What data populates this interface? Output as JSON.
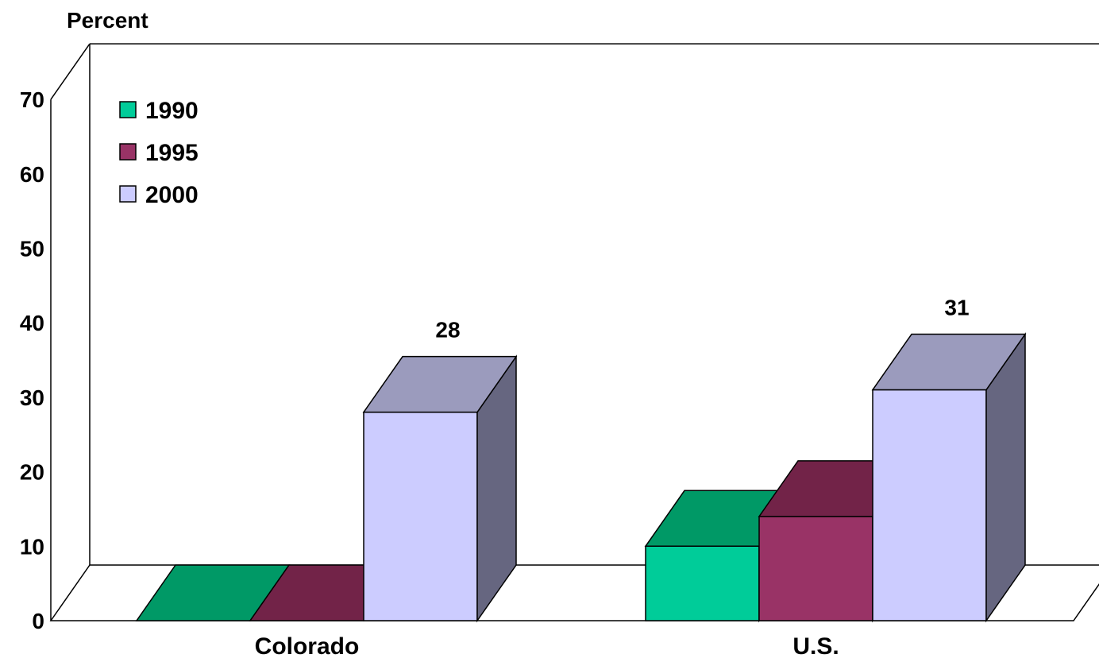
{
  "chart_data": {
    "type": "bar",
    "ylabel": "Percent",
    "xlabel": "",
    "ylim": [
      0,
      70
    ],
    "yticks": [
      0,
      10,
      20,
      30,
      40,
      50,
      60,
      70
    ],
    "categories": [
      "Colorado",
      "U.S."
    ],
    "three_d": true,
    "legend_position": "top-left",
    "series": [
      {
        "name": "1990",
        "values": [
          0,
          10
        ],
        "color": "#00CC99",
        "top_color": "#009966",
        "side_color": "#006655"
      },
      {
        "name": "1995",
        "values": [
          0,
          14
        ],
        "color": "#993366",
        "top_color": "#722348",
        "side_color": "#552038"
      },
      {
        "name": "2000",
        "values": [
          28,
          31
        ],
        "color": "#CCCCFF",
        "top_color": "#9B9BBD",
        "side_color": "#666680"
      }
    ],
    "data_labels": [
      {
        "category": "Colorado",
        "series": "2000",
        "text": "28"
      },
      {
        "category": "U.S.",
        "series": "2000",
        "text": "31"
      }
    ]
  }
}
